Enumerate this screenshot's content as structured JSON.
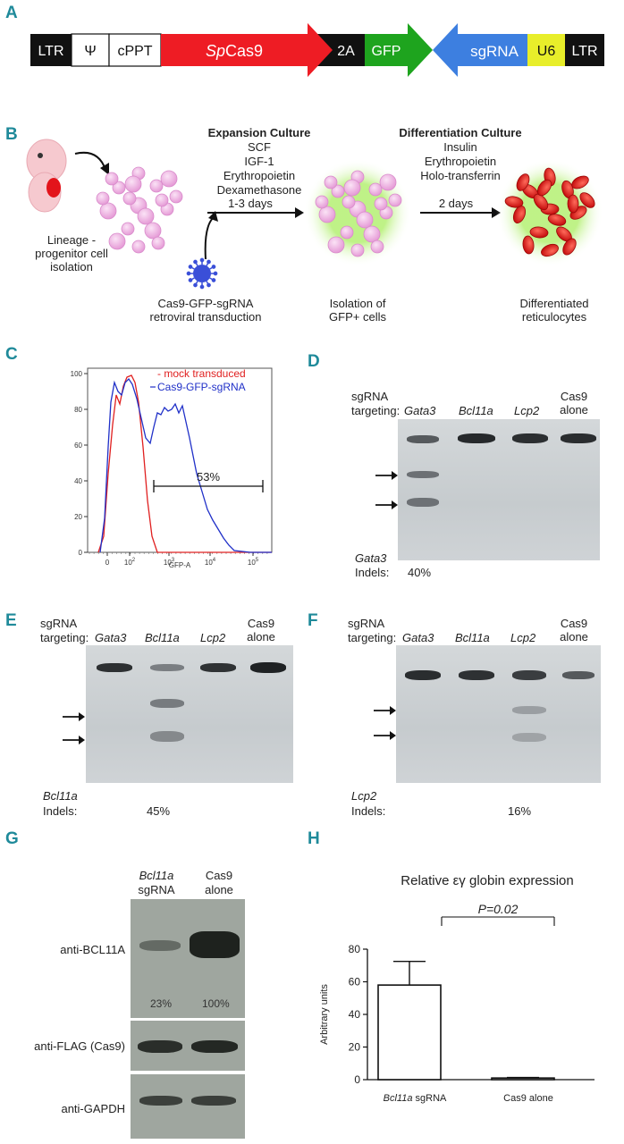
{
  "panel_a": {
    "label": "A",
    "segments": [
      "LTR",
      "Ψ",
      "cPPT",
      "Cas9",
      "2A",
      "GFP",
      "sgRNA",
      "U6",
      "LTR"
    ],
    "cas9_prefix": "Sp",
    "colors": {
      "cas9": "#ee1c24",
      "gfp": "#1ea41e",
      "sgrna": "#3d7fe0",
      "u6": "#e8ee2a",
      "black": "#111111"
    }
  },
  "panel_b": {
    "label": "B",
    "expansion": {
      "title": "Expansion Culture",
      "factors": [
        "SCF",
        "IGF-1",
        "Erythropoietin",
        "Dexamethasone"
      ],
      "duration": "1-3 days"
    },
    "differentiation": {
      "title": "Differentiation Culture",
      "factors": [
        "Insulin",
        "Erythropoietin",
        "Holo-transferrin"
      ],
      "duration": "2 days"
    },
    "isolation": [
      "Lineage -",
      "progenitor cell",
      "isolation"
    ],
    "transduction": [
      "Cas9-GFP-sgRNA",
      "retroviral transduction"
    ],
    "gfp_isolation": [
      "Isolation of",
      "GFP+ cells"
    ],
    "reticulocytes": [
      "Differentiated",
      "reticulocytes"
    ]
  },
  "panel_c": {
    "label": "C",
    "legend": [
      "- mock transduced",
      "Cas9-GFP-sgRNA"
    ],
    "gate": "53%",
    "xlabel": "GFP-A",
    "y_ticks": [
      "0",
      "20",
      "40",
      "60",
      "80",
      "100"
    ],
    "x_ticks": [
      "0",
      "10",
      "10",
      "10",
      "10"
    ],
    "x_tick_exp": [
      "",
      "2",
      "3",
      "4",
      "5"
    ]
  },
  "panel_d": {
    "label": "D",
    "sg_label": [
      "sgRNA",
      "targeting:"
    ],
    "lanes": [
      "Gata3",
      "Bcl11a",
      "Lcp2",
      "Cas9 alone"
    ],
    "indel_gene": "Gata3",
    "indel_label": "Indels:",
    "indel_value": "40%"
  },
  "panel_e": {
    "label": "E",
    "sg_label": [
      "sgRNA",
      "targeting:"
    ],
    "lanes": [
      "Gata3",
      "Bcl11a",
      "Lcp2",
      "Cas9 alone"
    ],
    "indel_gene": "Bcl11a",
    "indel_label": "Indels:",
    "indel_value": "45%"
  },
  "panel_f": {
    "label": "F",
    "sg_label": [
      "sgRNA",
      "targeting:"
    ],
    "lanes": [
      "Gata3",
      "Bcl11a",
      "Lcp2",
      "Cas9 alone"
    ],
    "indel_gene": "Lcp2",
    "indel_label": "Indels:",
    "indel_value": "16%"
  },
  "panel_g": {
    "label": "G",
    "col1": [
      "Bcl11a",
      "sgRNA"
    ],
    "col2": [
      "Cas9",
      "alone"
    ],
    "rows": [
      "anti-BCL11A",
      "anti-FLAG (Cas9)",
      "anti-GAPDH"
    ],
    "quant": [
      "23%",
      "100%"
    ]
  },
  "chart_data": {
    "type": "bar",
    "title": "Relative εγ globin expression",
    "categories": [
      "Bcl11a sgRNA",
      "Cas9 alone"
    ],
    "values": [
      58,
      1
    ],
    "error": [
      14.5,
      0.3
    ],
    "ylabel": "Arbitrary units",
    "ylim": [
      0,
      80
    ],
    "yticks": [
      0,
      20,
      40,
      60,
      80
    ],
    "annotation": "P=0.02",
    "label": "H"
  }
}
